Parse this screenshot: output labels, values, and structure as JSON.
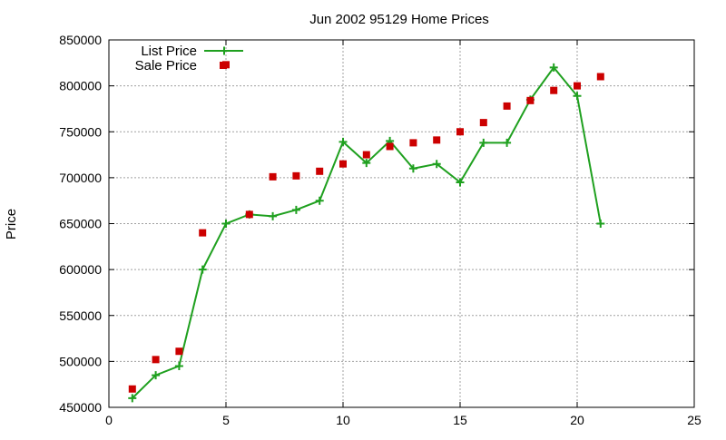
{
  "chart_data": {
    "type": "line",
    "title": "Jun 2002 95129 Home Prices",
    "xlabel": "",
    "ylabel": "Price",
    "xlim": [
      0,
      25
    ],
    "ylim": [
      450000,
      850000
    ],
    "x_ticks": [
      0,
      5,
      10,
      15,
      20,
      25
    ],
    "y_ticks": [
      450000,
      500000,
      550000,
      600000,
      650000,
      700000,
      750000,
      800000,
      850000
    ],
    "grid": true,
    "legend_position": "top-left",
    "series": [
      {
        "name": "List Price",
        "style": "line-with-plus-markers",
        "color": "#1fa01f",
        "x": [
          1,
          2,
          3,
          4,
          5,
          6,
          7,
          8,
          9,
          10,
          11,
          12,
          13,
          14,
          15,
          16,
          17,
          18,
          19,
          20,
          21
        ],
        "values": [
          460000,
          485000,
          495000,
          600000,
          650000,
          660000,
          658000,
          665000,
          675000,
          739000,
          716000,
          740000,
          710000,
          715000,
          695000,
          738000,
          738000,
          785000,
          820000,
          789000,
          650000
        ]
      },
      {
        "name": "Sale Price",
        "style": "square-markers",
        "color": "#cc0000",
        "x": [
          1,
          2,
          3,
          4,
          5,
          6,
          7,
          8,
          9,
          10,
          11,
          12,
          13,
          14,
          15,
          16,
          17,
          18,
          19,
          20,
          21
        ],
        "values": [
          470000,
          502000,
          511000,
          640000,
          823000,
          660000,
          701000,
          702000,
          707000,
          715000,
          725000,
          734000,
          738000,
          741000,
          750000,
          760000,
          778000,
          784000,
          795000,
          800000,
          810000
        ]
      }
    ]
  }
}
